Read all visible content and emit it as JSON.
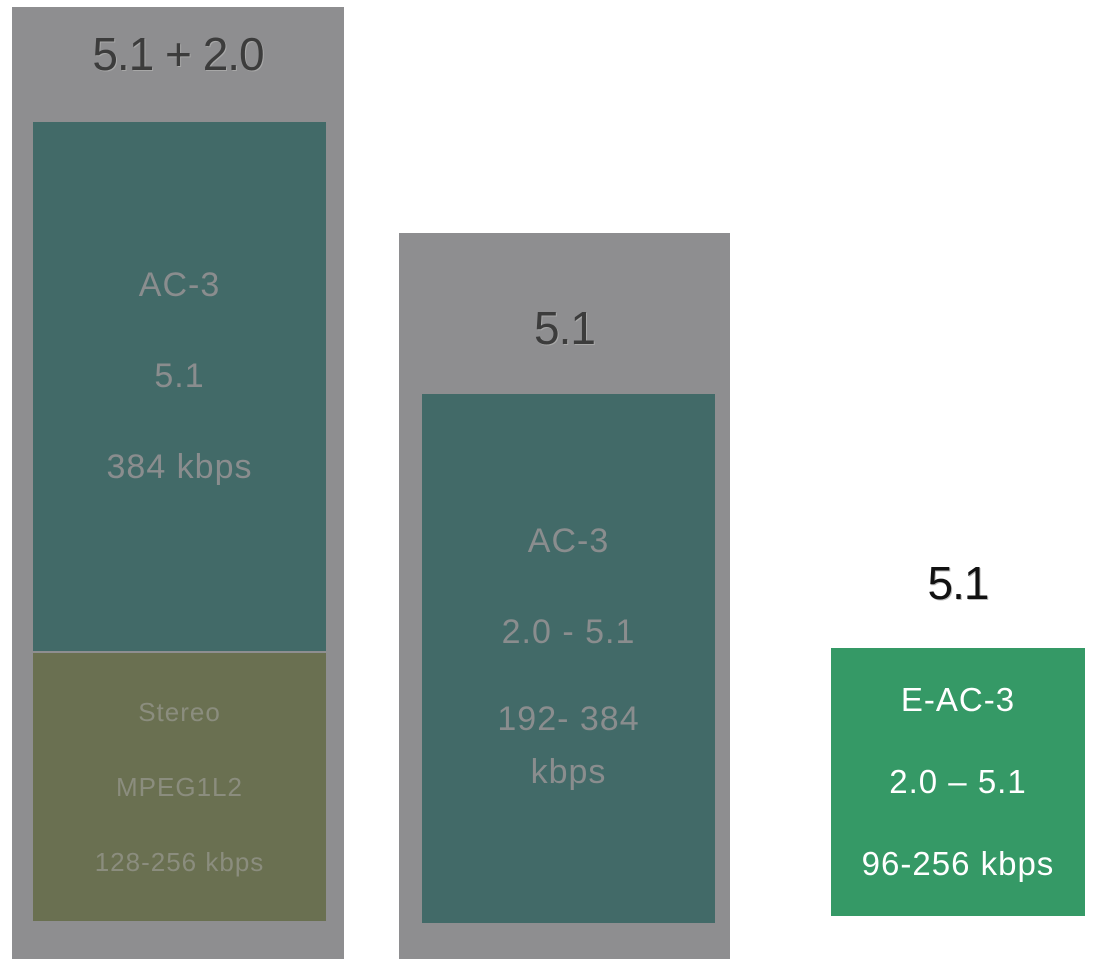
{
  "columns": [
    {
      "title": "5.1 + 2.0",
      "blocks": [
        {
          "lines": [
            "AC-3",
            "5.1",
            "384 kbps"
          ]
        },
        {
          "lines": [
            "Stereo",
            "MPEG1L2",
            "128-256 kbps"
          ]
        }
      ]
    },
    {
      "title": "5.1",
      "blocks": [
        {
          "lines": [
            "AC-3",
            "2.0 - 5.1",
            "192- 384",
            "kbps"
          ]
        }
      ]
    },
    {
      "title": "5.1",
      "blocks": [
        {
          "lines": [
            "E-AC-3",
            "2.0 – 5.1",
            "96-256 kbps"
          ]
        }
      ]
    }
  ]
}
